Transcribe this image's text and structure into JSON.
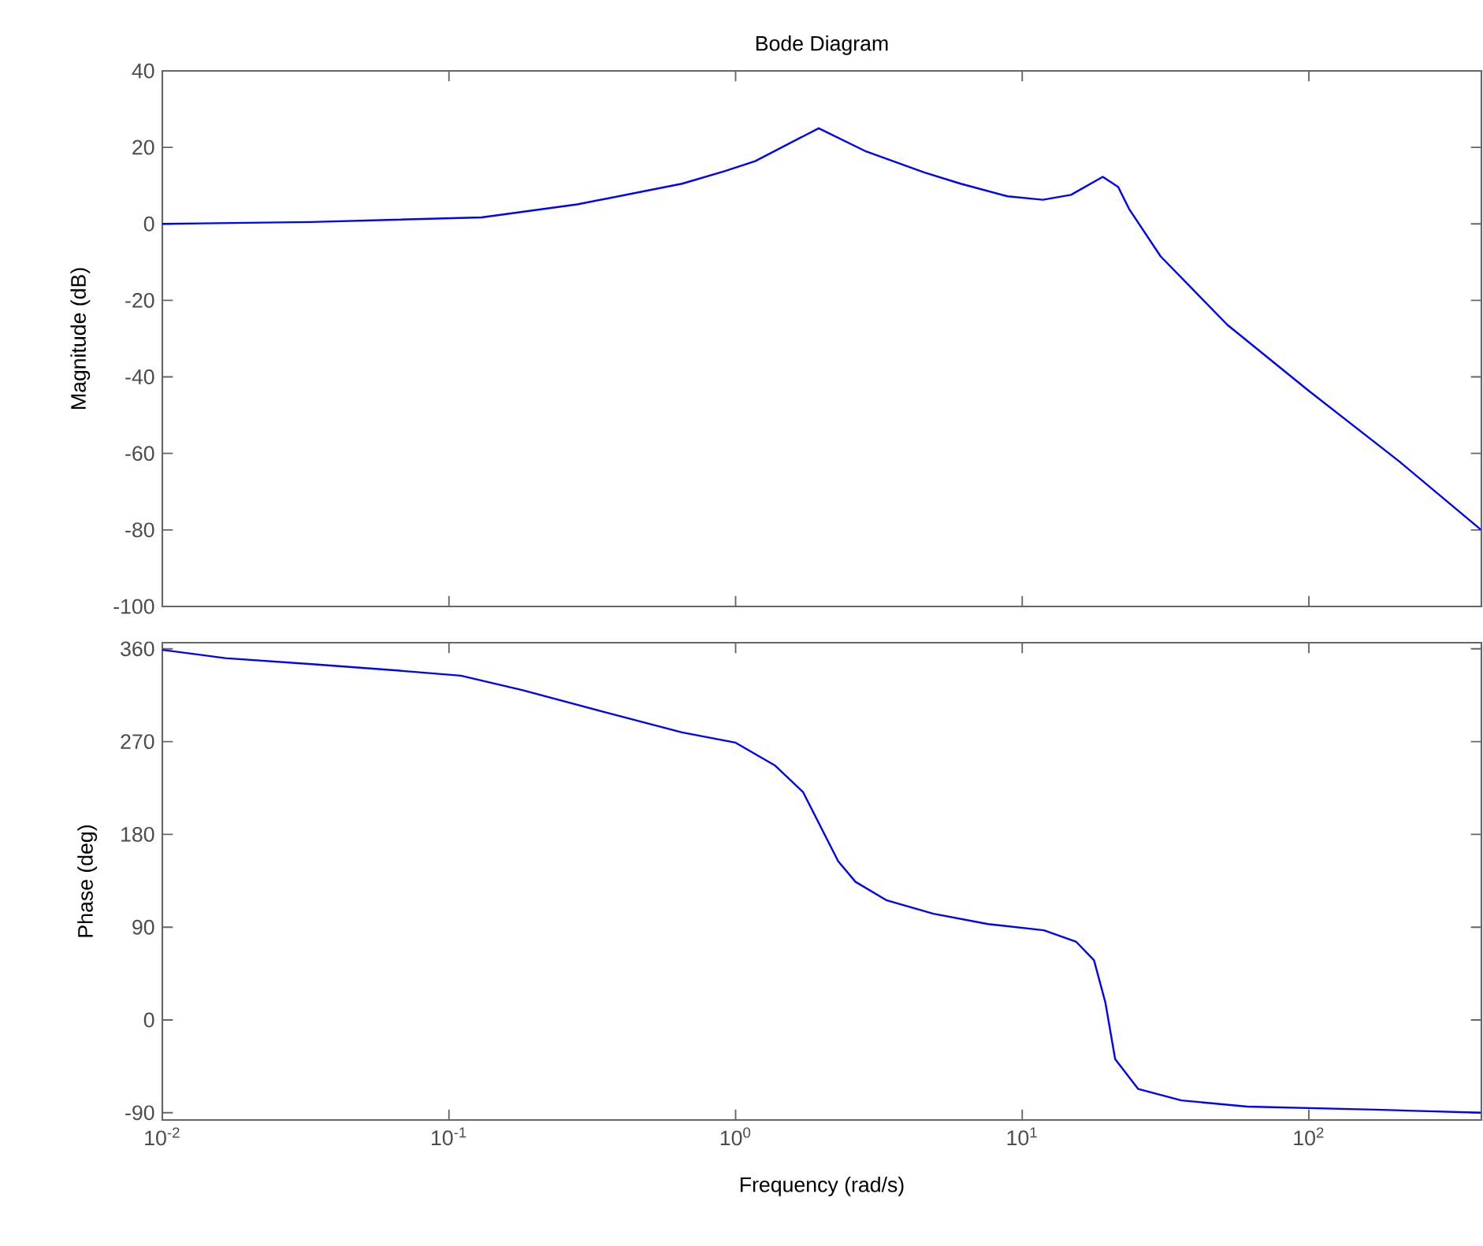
{
  "chart_data": [
    {
      "type": "line",
      "title": "Bode Diagram",
      "ylabel": "Magnitude (dB)",
      "log": "x",
      "tick_labels": "y",
      "color": "#0000ff",
      "x": [
        0.01,
        0.033,
        0.13,
        0.28,
        0.65,
        0.91,
        1.17,
        1.95,
        2.86,
        4.57,
        6.1,
        8.9,
        11.8,
        14.8,
        19.1,
        21.6,
        23.6,
        30.4,
        52,
        99,
        206,
        398
      ],
      "values": [
        0,
        0.5,
        1.7,
        5.1,
        10.5,
        13.7,
        16.4,
        25,
        18.9,
        13.4,
        10.5,
        7.2,
        6.3,
        7.6,
        12.3,
        9.7,
        3.9,
        -8.5,
        -26.4,
        -43.4,
        -62,
        -79.9
      ],
      "xlim": [
        0.01,
        400
      ],
      "ylim": [
        -100,
        40
      ],
      "yticks": [
        -100,
        -80,
        -60,
        -40,
        -20,
        0,
        20,
        40
      ],
      "xticks": [
        {
          "value": 0.01,
          "label": null
        },
        {
          "value": 0.1,
          "label": null
        },
        {
          "value": 1,
          "label": null
        },
        {
          "value": 10,
          "label": null
        },
        {
          "value": 100,
          "label": null
        }
      ]
    },
    {
      "type": "line",
      "xlabel": "Frequency  (rad/s)",
      "ylabel": "Phase (deg)",
      "log": "x",
      "color": "#0000ff",
      "x": [
        0.01,
        0.0166,
        0.034,
        0.066,
        0.11,
        0.18,
        0.345,
        0.65,
        1.0,
        1.37,
        1.72,
        2.28,
        2.62,
        3.37,
        4.9,
        7.6,
        11.9,
        15.4,
        17.8,
        19.5,
        21.1,
        25.4,
        35.9,
        61,
        170,
        398
      ],
      "values": [
        359,
        351,
        345,
        339,
        334,
        320,
        299,
        279,
        269,
        247,
        221,
        154,
        134,
        116,
        103,
        93,
        87,
        76,
        58,
        17,
        -38,
        -67,
        -78,
        -84,
        -87,
        -90
      ],
      "xlim": [
        0.01,
        400
      ],
      "ylim": [
        -97,
        366
      ],
      "yticks": [
        -90,
        0,
        90,
        180,
        270,
        360
      ],
      "xticks": [
        {
          "value": 0.01,
          "label": "10$^{-2}$"
        },
        {
          "value": 0.1,
          "label": "10$^{-1}$"
        },
        {
          "value": 1,
          "label": "10$^{0}$"
        },
        {
          "value": 10,
          "label": "10$^{1}$"
        },
        {
          "value": 100,
          "label": "10$^{2}$"
        }
      ]
    }
  ]
}
